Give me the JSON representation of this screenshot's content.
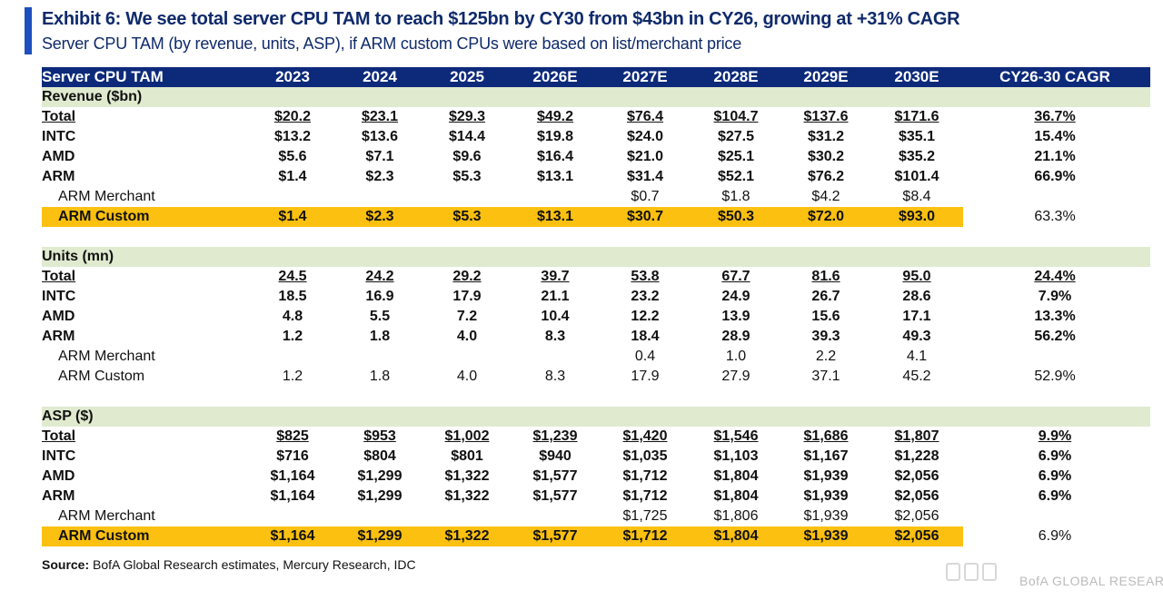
{
  "header": {
    "title": "Exhibit 6: We see total server CPU TAM to reach $125bn by CY30 from $43bn in CY26, growing at +31% CAGR",
    "subtitle": "Server CPU TAM (by revenue, units, ASP), if ARM custom CPUs were based on list/merchant price"
  },
  "table": {
    "header_row": [
      "Server CPU TAM",
      "2023",
      "2024",
      "2025",
      "2026E",
      "2027E",
      "2028E",
      "2029E",
      "2030E",
      "CY26-30 CAGR"
    ],
    "revenue": {
      "title": "Revenue ($bn)",
      "rows": [
        {
          "label": "Total",
          "cells": [
            "$20.2",
            "$23.1",
            "$29.3",
            "$49.2",
            "$76.4",
            "$104.7",
            "$137.6",
            "$171.6",
            "36.7%"
          ]
        },
        {
          "label": "INTC",
          "cells": [
            "$13.2",
            "$13.6",
            "$14.4",
            "$19.8",
            "$24.0",
            "$27.5",
            "$31.2",
            "$35.1",
            "15.4%"
          ]
        },
        {
          "label": "AMD",
          "cells": [
            "$5.6",
            "$7.1",
            "$9.6",
            "$16.4",
            "$21.0",
            "$25.1",
            "$30.2",
            "$35.2",
            "21.1%"
          ]
        },
        {
          "label": "ARM",
          "cells": [
            "$1.4",
            "$2.3",
            "$5.3",
            "$13.1",
            "$31.4",
            "$52.1",
            "$76.2",
            "$101.4",
            "66.9%"
          ]
        },
        {
          "label": "ARM Merchant",
          "cells": [
            "",
            "",
            "",
            "",
            "$0.7",
            "$1.8",
            "$4.2",
            "$8.4",
            ""
          ]
        },
        {
          "label": "ARM Custom",
          "cells": [
            "$1.4",
            "$2.3",
            "$5.3",
            "$13.1",
            "$30.7",
            "$50.3",
            "$72.0",
            "$93.0",
            "63.3%"
          ]
        }
      ]
    },
    "units": {
      "title": "Units (mn)",
      "rows": [
        {
          "label": "Total",
          "cells": [
            "24.5",
            "24.2",
            "29.2",
            "39.7",
            "53.8",
            "67.7",
            "81.6",
            "95.0",
            "24.4%"
          ]
        },
        {
          "label": "INTC",
          "cells": [
            "18.5",
            "16.9",
            "17.9",
            "21.1",
            "23.2",
            "24.9",
            "26.7",
            "28.6",
            "7.9%"
          ]
        },
        {
          "label": "AMD",
          "cells": [
            "4.8",
            "5.5",
            "7.2",
            "10.4",
            "12.2",
            "13.9",
            "15.6",
            "17.1",
            "13.3%"
          ]
        },
        {
          "label": "ARM",
          "cells": [
            "1.2",
            "1.8",
            "4.0",
            "8.3",
            "18.4",
            "28.9",
            "39.3",
            "49.3",
            "56.2%"
          ]
        },
        {
          "label": "ARM Merchant",
          "cells": [
            "",
            "",
            "",
            "",
            "0.4",
            "1.0",
            "2.2",
            "4.1",
            ""
          ]
        },
        {
          "label": "ARM Custom",
          "cells": [
            "1.2",
            "1.8",
            "4.0",
            "8.3",
            "17.9",
            "27.9",
            "37.1",
            "45.2",
            "52.9%"
          ]
        }
      ]
    },
    "asp": {
      "title": "ASP ($)",
      "rows": [
        {
          "label": "Total",
          "cells": [
            "$825",
            "$953",
            "$1,002",
            "$1,239",
            "$1,420",
            "$1,546",
            "$1,686",
            "$1,807",
            "9.9%"
          ]
        },
        {
          "label": "INTC",
          "cells": [
            "$716",
            "$804",
            "$801",
            "$940",
            "$1,035",
            "$1,103",
            "$1,167",
            "$1,228",
            "6.9%"
          ]
        },
        {
          "label": "AMD",
          "cells": [
            "$1,164",
            "$1,299",
            "$1,322",
            "$1,577",
            "$1,712",
            "$1,804",
            "$1,939",
            "$2,056",
            "6.9%"
          ]
        },
        {
          "label": "ARM",
          "cells": [
            "$1,164",
            "$1,299",
            "$1,322",
            "$1,577",
            "$1,712",
            "$1,804",
            "$1,939",
            "$2,056",
            "6.9%"
          ]
        },
        {
          "label": "ARM Merchant",
          "cells": [
            "",
            "",
            "",
            "",
            "$1,725",
            "$1,806",
            "$1,939",
            "$2,056",
            ""
          ]
        },
        {
          "label": "ARM Custom",
          "cells": [
            "$1,164",
            "$1,299",
            "$1,322",
            "$1,577",
            "$1,712",
            "$1,804",
            "$1,939",
            "$2,056",
            "6.9%"
          ]
        }
      ]
    }
  },
  "source": {
    "label": "Source:",
    "text": " BofA Global Research estimates, Mercury Research, IDC"
  },
  "watermark": "BofA GLOBAL RESEARCH",
  "colors": {
    "header_bg": "#0d2a7a",
    "section_bg": "#dfeacf",
    "highlight": "#fbc010",
    "title": "#0f2a6b",
    "accent": "#1d4fbd"
  }
}
